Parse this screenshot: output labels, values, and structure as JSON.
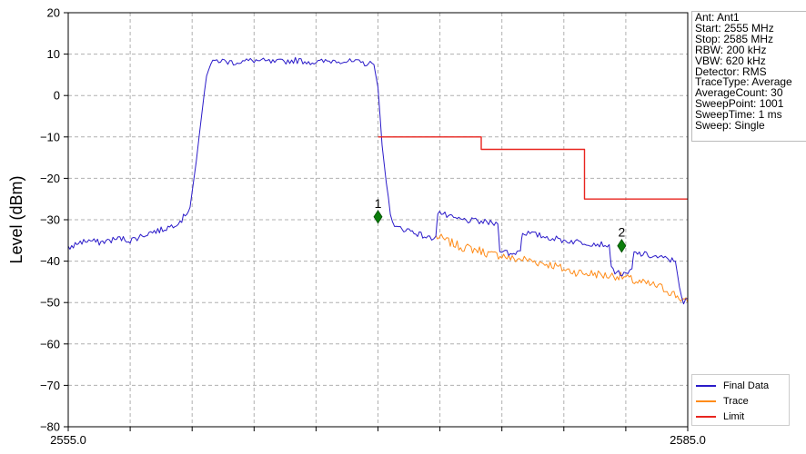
{
  "chart_data": {
    "type": "line",
    "ylabel": "Level (dBm)",
    "xlabel": "",
    "xlim": [
      2555.0,
      2585.0
    ],
    "ylim": [
      -80,
      20
    ],
    "x_tick_labels": [
      "2555.0",
      "2585.0"
    ],
    "y_ticks": [
      "20",
      "10",
      "0",
      "−10",
      "−20",
      "−30",
      "−40",
      "−50",
      "−60",
      "−70",
      "−80"
    ],
    "grid": true,
    "legend_position": "bottom-right",
    "info_lines": [
      "Ant: Ant1",
      "Start: 2555 MHz",
      "Stop: 2585 MHz",
      "RBW: 200 kHz",
      "VBW: 620 kHz",
      "Detector: RMS",
      "TraceType: Average",
      "AverageCount: 30",
      "SweepPoint: 1001",
      "SweepTime: 1 ms",
      "Sweep: Single"
    ],
    "series": [
      {
        "name": "Final Data",
        "color": "#2b1bc9",
        "points": [
          [
            2555.0,
            -37
          ],
          [
            2555.5,
            -35.5
          ],
          [
            2556.0,
            -35
          ],
          [
            2556.5,
            -35.5
          ],
          [
            2557.0,
            -35
          ],
          [
            2557.5,
            -34.5
          ],
          [
            2558.0,
            -35
          ],
          [
            2558.5,
            -34
          ],
          [
            2559.0,
            -33
          ],
          [
            2559.5,
            -32.5
          ],
          [
            2560.0,
            -31.5
          ],
          [
            2560.5,
            -30
          ],
          [
            2560.9,
            -27
          ],
          [
            2561.2,
            -16
          ],
          [
            2561.5,
            -3
          ],
          [
            2561.7,
            5
          ],
          [
            2561.9,
            7.5
          ],
          [
            2562.2,
            8.5
          ],
          [
            2563.0,
            8
          ],
          [
            2564.0,
            8.5
          ],
          [
            2565.0,
            8
          ],
          [
            2566.0,
            8.5
          ],
          [
            2567.0,
            8
          ],
          [
            2568.0,
            8.5
          ],
          [
            2569.0,
            8
          ],
          [
            2569.8,
            7.5
          ],
          [
            2570.0,
            2
          ],
          [
            2570.2,
            -12
          ],
          [
            2570.4,
            -21
          ],
          [
            2570.6,
            -28
          ],
          [
            2570.8,
            -32
          ],
          [
            2571.0,
            -32
          ],
          [
            2571.5,
            -32.5
          ],
          [
            2572.0,
            -33.5
          ],
          [
            2572.5,
            -34.5
          ],
          [
            2572.8,
            -34
          ],
          [
            2572.9,
            -28
          ],
          [
            2573.5,
            -29.5
          ],
          [
            2574.0,
            -30
          ],
          [
            2575.0,
            -30.5
          ],
          [
            2575.8,
            -31
          ],
          [
            2575.9,
            -37
          ],
          [
            2576.5,
            -38.5
          ],
          [
            2576.9,
            -37
          ],
          [
            2577.0,
            -33
          ],
          [
            2578.0,
            -34
          ],
          [
            2579.0,
            -35
          ],
          [
            2580.0,
            -35.5
          ],
          [
            2581.0,
            -36
          ],
          [
            2581.2,
            -36
          ],
          [
            2581.3,
            -42
          ],
          [
            2582.0,
            -43.5
          ],
          [
            2582.3,
            -42
          ],
          [
            2582.4,
            -38
          ],
          [
            2583.0,
            -38.5
          ],
          [
            2584.0,
            -39.5
          ],
          [
            2584.4,
            -40
          ],
          [
            2584.6,
            -46
          ],
          [
            2584.8,
            -50
          ],
          [
            2585.0,
            -49
          ]
        ]
      },
      {
        "name": "Trace",
        "color": "#ff8c1a",
        "points": [
          [
            2572.8,
            -34
          ],
          [
            2573.5,
            -35.5
          ],
          [
            2574.0,
            -36.5
          ],
          [
            2574.5,
            -37
          ],
          [
            2575.0,
            -37.5
          ],
          [
            2575.5,
            -38.5
          ],
          [
            2576.0,
            -38.5
          ],
          [
            2576.5,
            -39.5
          ],
          [
            2577.0,
            -39.5
          ],
          [
            2577.5,
            -40
          ],
          [
            2578.0,
            -40.5
          ],
          [
            2578.5,
            -41
          ],
          [
            2579.0,
            -42
          ],
          [
            2579.5,
            -42.5
          ],
          [
            2580.0,
            -43
          ],
          [
            2580.5,
            -43
          ],
          [
            2581.0,
            -43.5
          ],
          [
            2581.5,
            -43.5
          ],
          [
            2582.0,
            -44
          ],
          [
            2582.5,
            -45
          ],
          [
            2583.0,
            -45.5
          ],
          [
            2583.5,
            -46
          ],
          [
            2584.0,
            -47
          ],
          [
            2584.5,
            -48.5
          ],
          [
            2585.0,
            -50
          ]
        ]
      },
      {
        "name": "Limit",
        "color": "#e8251f",
        "points": [
          [
            2570.0,
            -10
          ],
          [
            2575.0,
            -10
          ],
          [
            2575.0,
            -13
          ],
          [
            2580.0,
            -13
          ],
          [
            2580.0,
            -25
          ],
          [
            2585.0,
            -25
          ]
        ]
      }
    ],
    "markers": [
      {
        "label": "1",
        "x": 2570.0,
        "y": -29.3,
        "color": "#0a7d0a"
      },
      {
        "label": "2",
        "x": 2581.8,
        "y": -36.3,
        "color": "#0a7d0a"
      }
    ]
  }
}
